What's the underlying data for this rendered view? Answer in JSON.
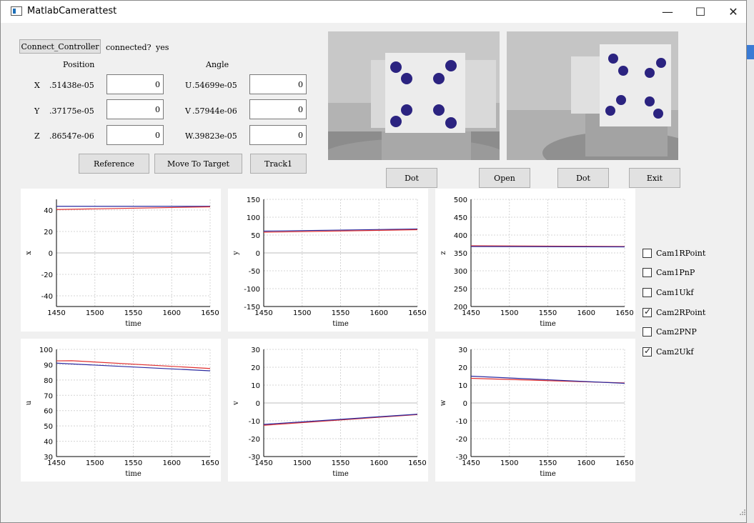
{
  "window": {
    "title": "MatlabCamerattest"
  },
  "controls": {
    "connect_button": "Connect_Controller",
    "connected_label": "connected?",
    "connected_value": "yes",
    "position_header": "Position",
    "angle_header": "Angle",
    "rows": [
      {
        "pos_label": "X",
        "pos_value": ".51438e-05",
        "pos_input": "0",
        "ang_label": "U",
        "ang_value": ".54699e-05",
        "ang_input": "0"
      },
      {
        "pos_label": "Y",
        "pos_value": ".37175e-05",
        "pos_input": "0",
        "ang_label": "V",
        "ang_value": ".57944e-06",
        "ang_input": "0"
      },
      {
        "pos_label": "Z",
        "pos_value": ".86547e-06",
        "pos_input": "0",
        "ang_label": "W",
        "ang_value": ".39823e-05",
        "ang_input": "0"
      }
    ],
    "reference_button": "Reference",
    "move_button": "Move To Target",
    "track_button": "Track1"
  },
  "camera_buttons": [
    "Dot",
    "Open",
    "Dot",
    "Exit"
  ],
  "checkboxes": [
    {
      "label": "Cam1RPoint",
      "checked": false
    },
    {
      "label": "Cam1PnP",
      "checked": false
    },
    {
      "label": "Cam1Ukf",
      "checked": false
    },
    {
      "label": "Cam2RPoint",
      "checked": true
    },
    {
      "label": "Cam2PNP",
      "checked": false
    },
    {
      "label": "Cam2Ukf",
      "checked": true
    }
  ],
  "chart_data": [
    {
      "type": "line",
      "ylabel": "x",
      "xlabel": "time",
      "xlim": [
        1450,
        1650
      ],
      "ylim": [
        -50,
        50
      ],
      "xticks": [
        1450,
        1500,
        1550,
        1600,
        1650
      ],
      "yticks": [
        40,
        20,
        0,
        -20,
        -40
      ],
      "series": [
        {
          "color": "#2a2aa0",
          "x": [
            1450,
            1650
          ],
          "y": [
            43.5,
            43.5
          ]
        },
        {
          "color": "#e03030",
          "x": [
            1450,
            1650
          ],
          "y": [
            40.5,
            43
          ]
        }
      ]
    },
    {
      "type": "line",
      "ylabel": "y",
      "xlabel": "time",
      "xlim": [
        1450,
        1650
      ],
      "ylim": [
        -150,
        150
      ],
      "xticks": [
        1450,
        1500,
        1550,
        1600,
        1650
      ],
      "yticks": [
        150,
        100,
        50,
        0,
        -50,
        -100,
        -150
      ],
      "series": [
        {
          "color": "#2a2aa0",
          "x": [
            1450,
            1650
          ],
          "y": [
            61,
            67
          ]
        },
        {
          "color": "#e03030",
          "x": [
            1450,
            1650
          ],
          "y": [
            58,
            65
          ]
        }
      ]
    },
    {
      "type": "line",
      "ylabel": "z",
      "xlabel": "time",
      "xlim": [
        1450,
        1650
      ],
      "ylim": [
        200,
        500
      ],
      "xticks": [
        1450,
        1500,
        1550,
        1600,
        1650
      ],
      "yticks": [
        500,
        450,
        400,
        350,
        300,
        250,
        200
      ],
      "series": [
        {
          "color": "#e03030",
          "x": [
            1450,
            1650
          ],
          "y": [
            370,
            368
          ]
        },
        {
          "color": "#2a2aa0",
          "x": [
            1450,
            1650
          ],
          "y": [
            368,
            367
          ]
        }
      ]
    },
    {
      "type": "line",
      "ylabel": "u",
      "xlabel": "time",
      "xlim": [
        1450,
        1650
      ],
      "ylim": [
        30,
        100
      ],
      "xticks": [
        1450,
        1500,
        1550,
        1600,
        1650
      ],
      "yticks": [
        100,
        90,
        80,
        70,
        60,
        50,
        40,
        30
      ],
      "series": [
        {
          "color": "#e03030",
          "x": [
            1450,
            1470,
            1650
          ],
          "y": [
            92.5,
            92.6,
            87.5
          ]
        },
        {
          "color": "#2a2aa0",
          "x": [
            1450,
            1650
          ],
          "y": [
            91,
            86
          ]
        }
      ]
    },
    {
      "type": "line",
      "ylabel": "v",
      "xlabel": "time",
      "xlim": [
        1450,
        1650
      ],
      "ylim": [
        -30,
        30
      ],
      "xticks": [
        1450,
        1500,
        1550,
        1600,
        1650
      ],
      "yticks": [
        30,
        20,
        10,
        0,
        -10,
        -20,
        -30
      ],
      "series": [
        {
          "color": "#e03030",
          "x": [
            1450,
            1650
          ],
          "y": [
            -12.5,
            -6.5
          ]
        },
        {
          "color": "#2a2aa0",
          "x": [
            1450,
            1650
          ],
          "y": [
            -12,
            -6.3
          ]
        }
      ]
    },
    {
      "type": "line",
      "ylabel": "w",
      "xlabel": "time",
      "xlim": [
        1450,
        1650
      ],
      "ylim": [
        -30,
        30
      ],
      "xticks": [
        1450,
        1500,
        1550,
        1600,
        1650
      ],
      "yticks": [
        30,
        20,
        10,
        0,
        -10,
        -20,
        -30
      ],
      "series": [
        {
          "color": "#e03030",
          "x": [
            1450,
            1650
          ],
          "y": [
            13.8,
            11.2
          ]
        },
        {
          "color": "#2a2aa0",
          "x": [
            1450,
            1650
          ],
          "y": [
            15,
            11
          ]
        }
      ]
    }
  ]
}
